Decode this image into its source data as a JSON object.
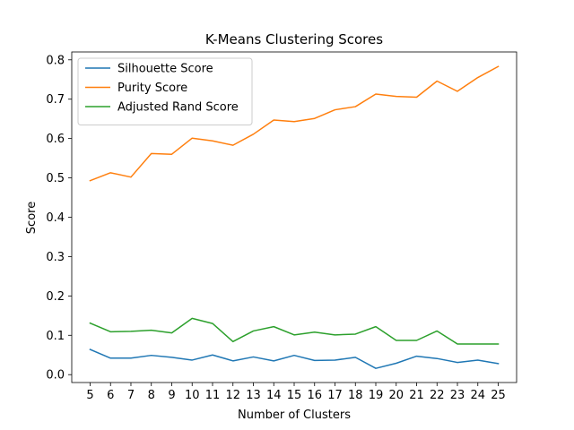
{
  "chart_data": {
    "type": "line",
    "title": "K-Means Clustering Scores",
    "xlabel": "Number of Clusters",
    "ylabel": "Score",
    "x": [
      5,
      6,
      7,
      8,
      9,
      10,
      11,
      12,
      13,
      14,
      15,
      16,
      17,
      18,
      19,
      20,
      21,
      22,
      23,
      24,
      25
    ],
    "xlim": [
      4.1,
      25.9
    ],
    "ylim": [
      -0.02,
      0.82
    ],
    "yticks": [
      0.0,
      0.1,
      0.2,
      0.3,
      0.4,
      0.5,
      0.6,
      0.7,
      0.8
    ],
    "ytick_labels": [
      "0.0",
      "0.1",
      "0.2",
      "0.3",
      "0.4",
      "0.5",
      "0.6",
      "0.7",
      "0.8"
    ],
    "grid": false,
    "legend_position": "upper-left",
    "series": [
      {
        "name": "Silhouette Score",
        "color": "#1f77b4",
        "values": [
          0.064,
          0.042,
          0.042,
          0.049,
          0.044,
          0.037,
          0.05,
          0.035,
          0.045,
          0.035,
          0.049,
          0.036,
          0.037,
          0.044,
          0.016,
          0.029,
          0.047,
          0.041,
          0.031,
          0.037,
          0.028
        ]
      },
      {
        "name": "Purity Score",
        "color": "#ff7f0e",
        "values": [
          0.493,
          0.513,
          0.502,
          0.562,
          0.56,
          0.601,
          0.594,
          0.583,
          0.611,
          0.647,
          0.643,
          0.651,
          0.673,
          0.681,
          0.713,
          0.707,
          0.705,
          0.746,
          0.72,
          0.755,
          0.783
        ]
      },
      {
        "name": "Adjusted Rand Score",
        "color": "#2ca02c",
        "values": [
          0.131,
          0.109,
          0.11,
          0.113,
          0.106,
          0.143,
          0.13,
          0.084,
          0.111,
          0.122,
          0.101,
          0.108,
          0.101,
          0.103,
          0.122,
          0.087,
          0.087,
          0.111,
          0.078,
          0.078,
          0.078
        ]
      }
    ]
  }
}
